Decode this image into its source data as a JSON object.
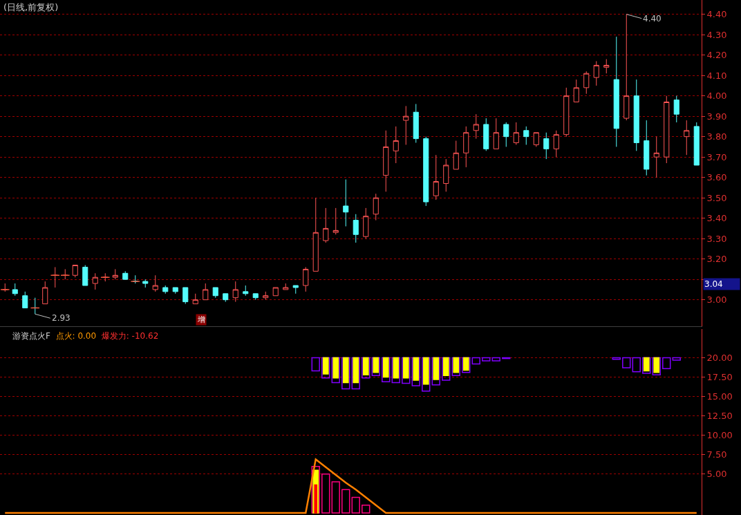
{
  "chart_data": [
    {
      "type": "candlestick",
      "title": "(日线,前复权)",
      "categories": [
        null,
        null,
        null,
        null,
        null,
        null,
        null,
        null,
        null,
        null,
        null,
        null,
        null,
        null,
        null,
        null,
        null,
        null,
        null,
        null,
        null,
        null,
        null,
        null,
        null,
        null,
        null,
        null,
        null,
        null,
        null,
        null,
        null,
        null,
        null,
        null,
        null,
        null,
        null,
        null,
        null,
        null,
        null,
        null,
        null,
        null,
        null,
        null,
        null,
        null,
        null,
        null,
        null,
        null,
        null,
        null,
        null,
        null,
        null,
        null,
        null,
        null,
        null,
        null,
        null,
        null,
        null,
        null,
        null,
        null
      ],
      "ohlc": [
        [
          3.05,
          3.08,
          3.04,
          3.05
        ],
        [
          3.05,
          3.08,
          3.02,
          3.03
        ],
        [
          3.02,
          3.04,
          2.96,
          2.96
        ],
        [
          2.96,
          3.01,
          2.93,
          2.96
        ],
        [
          2.98,
          3.09,
          2.98,
          3.06
        ],
        [
          3.12,
          3.16,
          3.06,
          3.12
        ],
        [
          3.12,
          3.15,
          3.1,
          3.12
        ],
        [
          3.12,
          3.17,
          3.11,
          3.17
        ],
        [
          3.16,
          3.17,
          3.07,
          3.07
        ],
        [
          3.08,
          3.13,
          3.05,
          3.11
        ],
        [
          3.11,
          3.13,
          3.09,
          3.11
        ],
        [
          3.11,
          3.15,
          3.1,
          3.12
        ],
        [
          3.13,
          3.14,
          3.1,
          3.1
        ],
        [
          3.09,
          3.12,
          3.08,
          3.09
        ],
        [
          3.09,
          3.1,
          3.06,
          3.08
        ],
        [
          3.05,
          3.12,
          3.04,
          3.07
        ],
        [
          3.06,
          3.07,
          3.03,
          3.04
        ],
        [
          3.06,
          3.06,
          3.03,
          3.04
        ],
        [
          3.06,
          3.06,
          2.98,
          2.99
        ],
        [
          2.98,
          3.03,
          2.98,
          3.0
        ],
        [
          3.0,
          3.08,
          3.0,
          3.05
        ],
        [
          3.06,
          3.06,
          3.01,
          3.02
        ],
        [
          3.03,
          3.03,
          2.99,
          3.0
        ],
        [
          3.01,
          3.09,
          2.99,
          3.05
        ],
        [
          3.04,
          3.07,
          3.02,
          3.03
        ],
        [
          3.03,
          3.03,
          3.0,
          3.01
        ],
        [
          3.01,
          3.04,
          3.0,
          3.02
        ],
        [
          3.02,
          3.06,
          3.02,
          3.06
        ],
        [
          3.05,
          3.08,
          3.05,
          3.06
        ],
        [
          3.07,
          3.07,
          3.03,
          3.06
        ],
        [
          3.07,
          3.16,
          3.04,
          3.15
        ],
        [
          3.14,
          3.5,
          3.14,
          3.33
        ],
        [
          3.29,
          3.45,
          3.28,
          3.35
        ],
        [
          3.33,
          3.45,
          3.32,
          3.34
        ],
        [
          3.46,
          3.59,
          3.36,
          3.43
        ],
        [
          3.39,
          3.42,
          3.28,
          3.32
        ],
        [
          3.31,
          3.45,
          3.3,
          3.41
        ],
        [
          3.42,
          3.52,
          3.39,
          3.5
        ],
        [
          3.61,
          3.83,
          3.53,
          3.75
        ],
        [
          3.73,
          3.85,
          3.67,
          3.78
        ],
        [
          3.88,
          3.95,
          3.76,
          3.9
        ],
        [
          3.92,
          3.96,
          3.77,
          3.79
        ],
        [
          3.79,
          3.8,
          3.46,
          3.48
        ],
        [
          3.51,
          3.71,
          3.49,
          3.58
        ],
        [
          3.57,
          3.69,
          3.53,
          3.66
        ],
        [
          3.64,
          3.78,
          3.64,
          3.72
        ],
        [
          3.72,
          3.85,
          3.65,
          3.82
        ],
        [
          3.83,
          3.91,
          3.79,
          3.86
        ],
        [
          3.86,
          3.89,
          3.73,
          3.74
        ],
        [
          3.74,
          3.89,
          3.74,
          3.82
        ],
        [
          3.86,
          3.87,
          3.75,
          3.8
        ],
        [
          3.77,
          3.87,
          3.76,
          3.82
        ],
        [
          3.83,
          3.85,
          3.76,
          3.8
        ],
        [
          3.76,
          3.82,
          3.75,
          3.82
        ],
        [
          3.79,
          3.82,
          3.69,
          3.74
        ],
        [
          3.74,
          3.83,
          3.7,
          3.81
        ],
        [
          3.81,
          4.04,
          3.8,
          4.0
        ],
        [
          3.97,
          4.08,
          3.97,
          4.04
        ],
        [
          4.04,
          4.12,
          4.01,
          4.11
        ],
        [
          4.09,
          4.17,
          4.05,
          4.15
        ],
        [
          4.14,
          4.18,
          4.11,
          4.15
        ],
        [
          4.08,
          4.29,
          3.75,
          3.84
        ],
        [
          3.89,
          4.4,
          3.88,
          4.0
        ],
        [
          4.0,
          4.08,
          3.73,
          3.77
        ],
        [
          3.78,
          3.88,
          3.61,
          3.64
        ],
        [
          3.7,
          3.8,
          3.6,
          3.72
        ],
        [
          3.7,
          4.0,
          3.67,
          3.97
        ],
        [
          3.98,
          4.0,
          3.87,
          3.91
        ],
        [
          3.8,
          3.88,
          3.71,
          3.83
        ],
        [
          3.85,
          3.87,
          3.66,
          3.66
        ]
      ],
      "ylim": [
        2.87,
        4.47
      ],
      "yticks": [
        {
          "value": 3.0,
          "label": "3.00"
        },
        {
          "value": 3.1,
          "label": null
        },
        {
          "value": 3.2,
          "label": "3.20"
        },
        {
          "value": 3.3,
          "label": "3.30"
        },
        {
          "value": 3.4,
          "label": "3.40"
        },
        {
          "value": 3.5,
          "label": "3.50"
        },
        {
          "value": 3.6,
          "label": "3.60"
        },
        {
          "value": 3.7,
          "label": "3.70"
        },
        {
          "value": 3.8,
          "label": "3.80"
        },
        {
          "value": 3.9,
          "label": "3.90"
        },
        {
          "value": 4.0,
          "label": "4.00"
        },
        {
          "value": 4.1,
          "label": "4.10"
        },
        {
          "value": 4.2,
          "label": "4.20"
        },
        {
          "value": 4.3,
          "label": "4.30"
        },
        {
          "value": 4.4,
          "label": "4.40"
        }
      ],
      "grid": "y",
      "tick_labels": "y",
      "annotations": [
        "2.93",
        "4.40",
        "3.04",
        "增"
      ]
    },
    {
      "type": "bar",
      "title": "游资点火F",
      "annotations": [
        "点火: 0.00",
        "爆发力: -10.62"
      ],
      "categories": [
        null,
        null,
        null,
        null,
        null,
        null,
        null,
        null,
        null,
        null,
        null,
        null,
        null,
        null,
        null,
        null,
        null,
        null,
        null,
        null,
        null,
        null,
        null,
        null,
        null,
        null,
        null,
        null,
        null,
        null,
        null,
        null,
        null,
        null,
        null,
        null,
        null,
        null,
        null,
        null,
        null,
        null,
        null,
        null,
        null,
        null,
        null,
        null,
        null,
        null,
        null,
        null,
        null,
        null,
        null,
        null,
        null,
        null,
        null,
        null,
        null,
        null,
        null,
        null,
        null,
        null,
        null,
        null,
        null,
        null
      ],
      "ylim": [
        -0.27,
        23.7
      ],
      "yticks": [
        {
          "value": 5,
          "label": "5.00"
        },
        {
          "value": 7.5,
          "label": "7.50"
        },
        {
          "value": 10,
          "label": "10.00"
        },
        {
          "value": 12.5,
          "label": "12.50"
        },
        {
          "value": 15,
          "label": "15.00"
        },
        {
          "value": 17.5,
          "label": "17.50"
        },
        {
          "value": 20,
          "label": "20.00"
        }
      ],
      "grid": "y",
      "tick_labels": "y",
      "series": [
        {
          "color": "#8000ff",
          "values": [
            null,
            null,
            null,
            null,
            null,
            null,
            null,
            null,
            null,
            null,
            null,
            null,
            null,
            null,
            null,
            null,
            null,
            null,
            null,
            null,
            null,
            null,
            null,
            null,
            null,
            null,
            null,
            null,
            null,
            null,
            null,
            -1.7,
            -2.6,
            -3.2,
            -4.0,
            -4.0,
            -2.6,
            -2.3,
            -3.1,
            -3.2,
            -3.3,
            -3.6,
            -4.3,
            -3.5,
            -2.9,
            -2.3,
            -1.9,
            -0.8,
            -0.4,
            -0.4,
            -0.1,
            null,
            null,
            null,
            null,
            null,
            null,
            null,
            null,
            null,
            null,
            -0.2,
            -1.3,
            -1.8,
            -2.0,
            -2.2,
            -1.4,
            -0.3,
            null,
            null
          ],
          "base": [
            null,
            null,
            null,
            null,
            null,
            null,
            null,
            null,
            null,
            null,
            null,
            null,
            null,
            null,
            null,
            null,
            null,
            null,
            null,
            null,
            null,
            null,
            null,
            null,
            null,
            null,
            null,
            null,
            null,
            null,
            null,
            20,
            20,
            20,
            20,
            20,
            20,
            20,
            20,
            20,
            20,
            20,
            20,
            20,
            20,
            20,
            20,
            20,
            20,
            20,
            20,
            null,
            null,
            null,
            null,
            null,
            null,
            null,
            null,
            null,
            null,
            20,
            20,
            20,
            20,
            20,
            20,
            20,
            null,
            null
          ]
        },
        {
          "color": "#ffff00",
          "values": [
            null,
            null,
            null,
            null,
            null,
            null,
            null,
            null,
            null,
            null,
            null,
            null,
            null,
            null,
            null,
            null,
            null,
            null,
            null,
            null,
            null,
            null,
            null,
            null,
            null,
            null,
            null,
            null,
            null,
            null,
            null,
            null,
            -2.1,
            -2.6,
            -3.2,
            -3.2,
            -2.2,
            -1.9,
            -2.5,
            -2.6,
            -2.6,
            -2.9,
            -3.4,
            -2.8,
            -2.3,
            -1.9,
            -1.6,
            null,
            null,
            null,
            null,
            null,
            null,
            null,
            null,
            null,
            null,
            null,
            null,
            null,
            null,
            null,
            null,
            null,
            -1.7,
            -1.9,
            null,
            null,
            null,
            null
          ],
          "base": [
            null,
            null,
            null,
            null,
            null,
            null,
            null,
            null,
            null,
            null,
            null,
            null,
            null,
            null,
            null,
            null,
            null,
            null,
            null,
            null,
            null,
            null,
            null,
            null,
            null,
            null,
            null,
            null,
            null,
            null,
            null,
            null,
            20,
            20,
            20,
            20,
            20,
            20,
            20,
            20,
            20,
            20,
            20,
            20,
            20,
            20,
            20,
            null,
            null,
            null,
            null,
            null,
            null,
            null,
            null,
            null,
            null,
            null,
            null,
            null,
            null,
            null,
            null,
            null,
            20,
            20,
            null,
            null,
            null,
            null
          ]
        },
        {
          "color": "#ff0080",
          "values": [
            null,
            null,
            null,
            null,
            null,
            null,
            null,
            null,
            null,
            null,
            null,
            null,
            null,
            null,
            null,
            null,
            null,
            null,
            null,
            null,
            null,
            null,
            null,
            null,
            null,
            null,
            null,
            null,
            null,
            null,
            null,
            6,
            5,
            4,
            3,
            2,
            1,
            null,
            null,
            null,
            null,
            null,
            null,
            null,
            null,
            null,
            null,
            null,
            null,
            null,
            null,
            null,
            null,
            null,
            null,
            null,
            null,
            null,
            null,
            null,
            null,
            null,
            null,
            null,
            null,
            null,
            null,
            null,
            null,
            null
          ]
        },
        {
          "color": "#ffff00",
          "values": [
            null,
            null,
            null,
            null,
            null,
            null,
            null,
            null,
            null,
            null,
            null,
            null,
            null,
            null,
            null,
            null,
            null,
            null,
            null,
            null,
            null,
            null,
            null,
            null,
            null,
            null,
            null,
            null,
            null,
            null,
            null,
            5.5,
            null,
            null,
            null,
            null,
            null,
            null,
            null,
            null,
            null,
            null,
            null,
            null,
            null,
            null,
            null,
            null,
            null,
            null,
            null,
            null,
            null,
            null,
            null,
            null,
            null,
            null,
            null,
            null,
            null,
            null,
            null,
            null,
            null,
            null,
            null,
            null,
            null,
            null
          ]
        },
        {
          "color": "#ff0000",
          "values": [
            null,
            null,
            null,
            null,
            null,
            null,
            null,
            null,
            null,
            null,
            null,
            null,
            null,
            null,
            null,
            null,
            null,
            null,
            null,
            null,
            null,
            null,
            null,
            null,
            null,
            null,
            null,
            null,
            null,
            null,
            null,
            3.6,
            null,
            null,
            null,
            null,
            null,
            null,
            null,
            null,
            null,
            null,
            null,
            null,
            null,
            null,
            null,
            null,
            null,
            null,
            null,
            null,
            null,
            null,
            null,
            null,
            null,
            null,
            null,
            null,
            null,
            null,
            null,
            null,
            null,
            null,
            null,
            null,
            null,
            null
          ]
        },
        {
          "type": "line",
          "color": "#ff8000",
          "values": [
            0,
            0,
            0,
            0,
            0,
            0,
            0,
            0,
            0,
            0,
            0,
            0,
            0,
            0,
            0,
            0,
            0,
            0,
            0,
            0,
            0,
            0,
            0,
            0,
            0,
            0,
            0,
            0,
            0,
            0,
            0,
            6.9,
            5.9,
            4.9,
            3.9,
            3.0,
            2.0,
            1.0,
            0,
            0,
            0,
            0,
            0,
            0,
            0,
            0,
            0,
            0,
            0,
            0,
            0,
            0,
            0,
            0,
            0,
            0,
            0,
            0,
            0,
            0,
            0,
            0,
            0,
            0,
            0,
            0,
            0,
            0,
            0,
            0
          ]
        }
      ]
    }
  ]
}
